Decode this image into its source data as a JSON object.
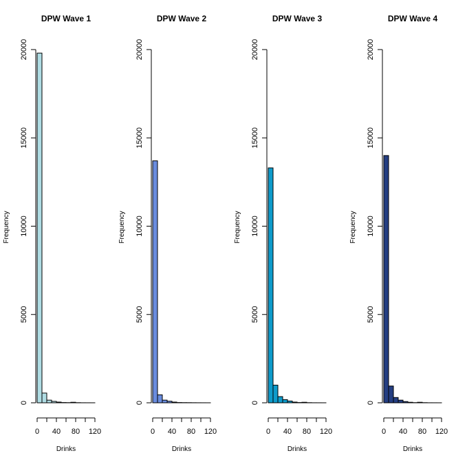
{
  "chart_data": [
    {
      "type": "bar",
      "title": "DPW Wave 1",
      "xlabel": "Drinks",
      "ylabel": "Frequency",
      "bar_color": "#B0DDE4",
      "bin_edges": [
        0,
        10,
        20,
        30,
        40,
        50,
        60,
        70,
        80,
        90,
        100,
        110,
        120
      ],
      "values": [
        19800,
        550,
        150,
        80,
        40,
        15,
        10,
        30,
        8,
        3,
        2,
        1
      ],
      "xticks": [
        0,
        40,
        80,
        120
      ],
      "yticks": [
        0,
        5000,
        10000,
        15000,
        20000
      ],
      "xlim": [
        0,
        120
      ],
      "ylim": [
        0,
        20000
      ]
    },
    {
      "type": "bar",
      "title": "DPW Wave 2",
      "xlabel": "Drinks",
      "ylabel": "Frequency",
      "bar_color": "#6A8CDE",
      "bin_edges": [
        0,
        10,
        20,
        30,
        40,
        50,
        60,
        70,
        80,
        90,
        100,
        110,
        120
      ],
      "values": [
        13700,
        450,
        150,
        90,
        40,
        15,
        10,
        8,
        5,
        3,
        2,
        1
      ],
      "xticks": [
        0,
        40,
        80,
        120
      ],
      "yticks": [
        0,
        5000,
        10000,
        15000,
        20000
      ],
      "xlim": [
        0,
        120
      ],
      "ylim": [
        0,
        20000
      ]
    },
    {
      "type": "bar",
      "title": "DPW Wave 3",
      "xlabel": "Drinks",
      "ylabel": "Frequency",
      "bar_color": "#0E9BCB",
      "bin_edges": [
        0,
        10,
        20,
        30,
        40,
        50,
        60,
        70,
        80,
        90,
        100,
        110,
        120
      ],
      "values": [
        13300,
        1000,
        350,
        180,
        100,
        40,
        15,
        30,
        8,
        3,
        2,
        1
      ],
      "xticks": [
        0,
        40,
        80,
        120
      ],
      "yticks": [
        0,
        5000,
        10000,
        15000,
        20000
      ],
      "xlim": [
        0,
        120
      ],
      "ylim": [
        0,
        20000
      ]
    },
    {
      "type": "bar",
      "title": "DPW Wave 4",
      "xlabel": "Drinks",
      "ylabel": "Frequency",
      "bar_color": "#243E82",
      "bin_edges": [
        0,
        10,
        20,
        30,
        40,
        50,
        60,
        70,
        80,
        90,
        100,
        110,
        120
      ],
      "values": [
        14000,
        950,
        300,
        150,
        70,
        30,
        10,
        30,
        8,
        3,
        2,
        1
      ],
      "xticks": [
        0,
        40,
        80,
        120
      ],
      "yticks": [
        0,
        5000,
        10000,
        15000,
        20000
      ],
      "xlim": [
        0,
        120
      ],
      "ylim": [
        0,
        20000
      ]
    }
  ]
}
